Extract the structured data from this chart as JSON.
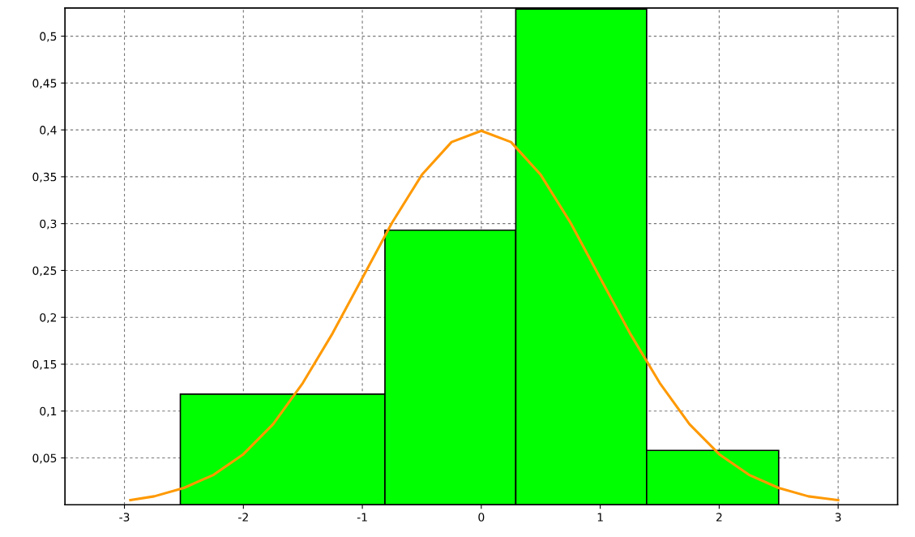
{
  "chart_data": {
    "type": "histogram",
    "bins": [
      -2.53,
      -0.81,
      0.29,
      1.39,
      2.5
    ],
    "values": [
      0.118,
      0.293,
      0.529,
      0.058
    ],
    "color": "#00ff00",
    "series": [
      {
        "type": "line",
        "color": "#ff9900",
        "x": [
          -2.95,
          -2.75,
          -2.5,
          -2.25,
          -2.0,
          -1.75,
          -1.5,
          -1.25,
          -1.0,
          -0.75,
          -0.5,
          -0.25,
          0.0,
          0.25,
          0.5,
          0.75,
          1.0,
          1.25,
          1.5,
          1.75,
          2.0,
          2.25,
          2.5,
          2.75,
          3.0
        ],
        "values": [
          0.005,
          0.009,
          0.018,
          0.032,
          0.054,
          0.086,
          0.13,
          0.183,
          0.242,
          0.301,
          0.352,
          0.387,
          0.399,
          0.387,
          0.352,
          0.301,
          0.242,
          0.183,
          0.13,
          0.086,
          0.054,
          0.032,
          0.018,
          0.009,
          0.005
        ]
      }
    ],
    "xlim": [
      -3.5,
      3.5
    ],
    "ylim": [
      0,
      0.53
    ],
    "xticks": [
      {
        "value": -3,
        "label": "-3"
      },
      {
        "value": -2,
        "label": "-2"
      },
      {
        "value": -1,
        "label": "-1"
      },
      0,
      1,
      2,
      3
    ],
    "yticks": [
      {
        "value": 0.05,
        "label": "0,05"
      },
      {
        "value": 0.1,
        "label": "0,1"
      },
      {
        "value": 0.15,
        "label": "0,15"
      },
      {
        "value": 0.2,
        "label": "0,2"
      },
      {
        "value": 0.25,
        "label": "0,25"
      },
      {
        "value": 0.3,
        "label": "0,3"
      },
      {
        "value": 0.35,
        "label": "0,35"
      },
      {
        "value": 0.4,
        "label": "0,4"
      },
      {
        "value": 0.45,
        "label": "0,45"
      },
      {
        "value": 0.5,
        "label": "0,5"
      }
    ],
    "grid": true,
    "legend": false
  }
}
